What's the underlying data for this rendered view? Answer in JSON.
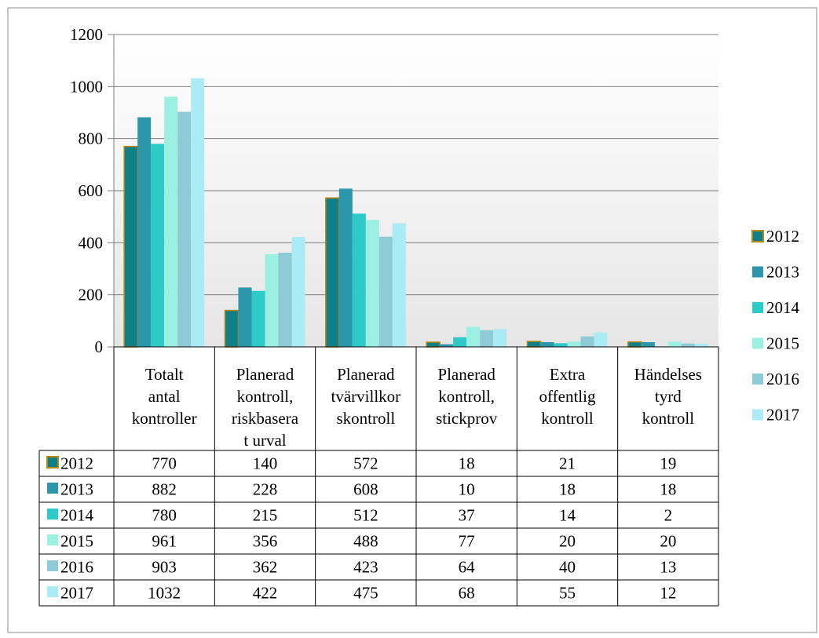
{
  "colors": {
    "2012": "#0f7f8a",
    "2013": "#2c97ab",
    "2014": "#2ec9c9",
    "2015": "#9bf0e2",
    "2016": "#8fcad7",
    "2017": "#aaebf5",
    "marker_border_2012": "#b8860b",
    "grid": "#7f7f7f",
    "plot_bg_top": "#ffffff",
    "plot_bg_bottom": "#e6e6e6"
  },
  "chart_data": {
    "type": "bar",
    "categories": [
      [
        "Totalt",
        "antal",
        "kontroller"
      ],
      [
        "Planerad",
        "kontroll,",
        "riskbasera",
        "t urval"
      ],
      [
        "Planerad",
        "tvärvillkor",
        "skontroll"
      ],
      [
        "Planerad",
        "kontroll,",
        "stickprov"
      ],
      [
        "Extra",
        "offentlig",
        "kontroll"
      ],
      [
        "Händelses",
        "tyrd",
        "kontroll"
      ]
    ],
    "series": [
      {
        "name": "2012",
        "values": [
          770,
          140,
          572,
          18,
          21,
          19
        ]
      },
      {
        "name": "2013",
        "values": [
          882,
          228,
          608,
          10,
          18,
          18
        ]
      },
      {
        "name": "2014",
        "values": [
          780,
          215,
          512,
          37,
          14,
          2
        ]
      },
      {
        "name": "2015",
        "values": [
          961,
          356,
          488,
          77,
          20,
          20
        ]
      },
      {
        "name": "2016",
        "values": [
          903,
          362,
          423,
          64,
          40,
          13
        ]
      },
      {
        "name": "2017",
        "values": [
          1032,
          422,
          475,
          68,
          55,
          12
        ]
      }
    ],
    "ylim": [
      0,
      1200
    ],
    "yticks": [
      "0",
      "200",
      "400",
      "600",
      "800",
      "1000",
      "1200"
    ],
    "grid": true,
    "legend": "right",
    "data_table": true
  }
}
